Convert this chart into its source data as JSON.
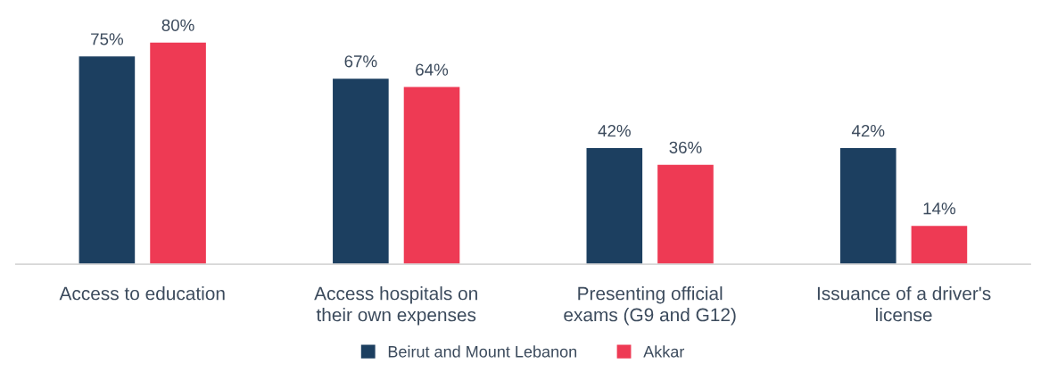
{
  "chart_data": {
    "type": "bar",
    "categories": [
      "Access to education",
      "Access hospitals on\ntheir own expenses",
      "Presenting official\nexams (G9 and G12)",
      "Issuance of a driver's\nlicense"
    ],
    "series": [
      {
        "name": "Beirut and Mount Lebanon",
        "color": "#1c3f60",
        "values": [
          75,
          67,
          42,
          42
        ],
        "value_labels": [
          "75%",
          "67%",
          "42%",
          "42%"
        ]
      },
      {
        "name": "Akkar",
        "color": "#ee3a54",
        "values": [
          80,
          64,
          36,
          14
        ],
        "value_labels": [
          "80%",
          "64%",
          "36%",
          "14%"
        ]
      }
    ],
    "legend": "bottom",
    "grid": false
  }
}
